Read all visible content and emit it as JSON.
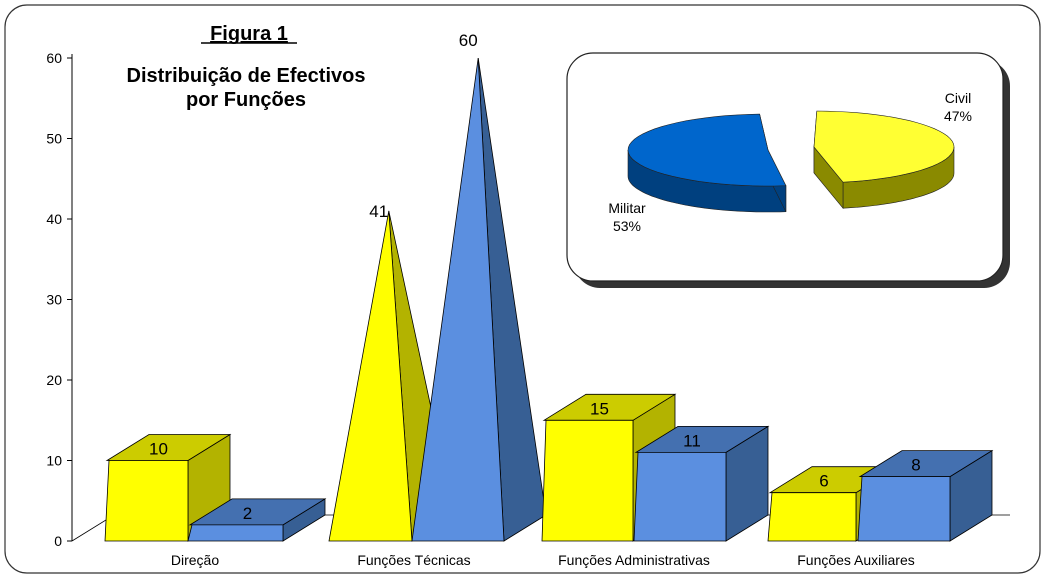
{
  "figure_label": "Figura 1",
  "title_line1": "Distribuição de Efectivos",
  "title_line2": "por Funções",
  "colors": {
    "yellow_front": "#ffff00",
    "yellow_side": "#b3b300",
    "yellow_top": "#cccc00",
    "blue_front": "#5b8fe0",
    "blue_side": "#375f94",
    "blue_top": "#4470b0",
    "pie_civil": "#ffff33",
    "pie_civil_side": "#8a8a00",
    "pie_militar": "#0066cc",
    "pie_militar_side": "#00407f"
  },
  "chart_data": [
    {
      "type": "bar",
      "categories": [
        "Direção",
        "Funções Técnicas",
        "Funções Administrativas",
        "Funções Auxiliares"
      ],
      "series": [
        {
          "color": "#ffff00",
          "values": [
            10,
            41,
            15,
            6
          ]
        },
        {
          "color": "#5b8fe0",
          "values": [
            2,
            60,
            11,
            8
          ]
        }
      ],
      "title": "Distribuição de Efectivos por Funções",
      "ylim": [
        0,
        60
      ],
      "yticks": [
        0,
        10,
        20,
        30,
        40,
        50,
        60
      ],
      "shapes": [
        "block",
        "pyramid",
        "block",
        "block"
      ],
      "grid": false
    },
    {
      "type": "pie",
      "slices": [
        {
          "label": "Civil",
          "percent_label": "47%",
          "value": 47,
          "color": "#ffff33"
        },
        {
          "label": "Militar",
          "percent_label": "53%",
          "value": 53,
          "color": "#0066cc"
        }
      ]
    }
  ]
}
